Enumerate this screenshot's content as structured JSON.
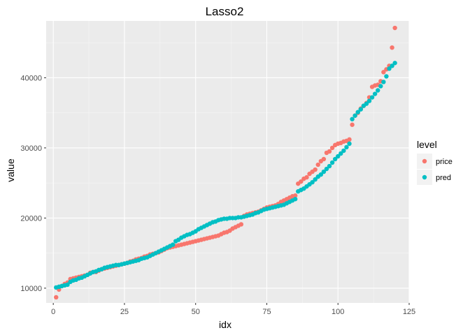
{
  "chart_data": {
    "type": "scatter",
    "title": "Lasso2",
    "xlabel": "idx",
    "ylabel": "value",
    "xlim": [
      -2.5,
      125
    ],
    "ylim": [
      7900,
      48100
    ],
    "x_ticks": [
      0,
      25,
      50,
      75,
      100,
      125
    ],
    "y_ticks": [
      10000,
      20000,
      30000,
      40000
    ],
    "grid": true,
    "legend": {
      "title": "level",
      "position": "right"
    },
    "series": [
      {
        "name": "price",
        "color": "#F8766D",
        "points": [
          [
            1,
            8700
          ],
          [
            2,
            9800
          ],
          [
            3,
            10300
          ],
          [
            4,
            10600
          ],
          [
            5,
            10800
          ],
          [
            6,
            11300
          ],
          [
            7,
            11400
          ],
          [
            8,
            11500
          ],
          [
            9,
            11600
          ],
          [
            10,
            11700
          ],
          [
            11,
            11800
          ],
          [
            12,
            11900
          ],
          [
            13,
            12200
          ],
          [
            14,
            12300
          ],
          [
            15,
            12300
          ],
          [
            16,
            12500
          ],
          [
            17,
            12700
          ],
          [
            18,
            12800
          ],
          [
            19,
            12900
          ],
          [
            20,
            13000
          ],
          [
            21,
            13100
          ],
          [
            22,
            13200
          ],
          [
            23,
            13300
          ],
          [
            24,
            13400
          ],
          [
            25,
            13500
          ],
          [
            26,
            13600
          ],
          [
            27,
            13800
          ],
          [
            28,
            13900
          ],
          [
            29,
            14100
          ],
          [
            30,
            14200
          ],
          [
            31,
            14300
          ],
          [
            32,
            14500
          ],
          [
            33,
            14600
          ],
          [
            34,
            14800
          ],
          [
            35,
            14900
          ],
          [
            36,
            15000
          ],
          [
            37,
            15100
          ],
          [
            38,
            15300
          ],
          [
            39,
            15500
          ],
          [
            40,
            15700
          ],
          [
            41,
            15800
          ],
          [
            42,
            15900
          ],
          [
            43,
            16000
          ],
          [
            44,
            16100
          ],
          [
            45,
            16200
          ],
          [
            46,
            16300
          ],
          [
            47,
            16400
          ],
          [
            48,
            16500
          ],
          [
            49,
            16600
          ],
          [
            50,
            16700
          ],
          [
            51,
            16800
          ],
          [
            52,
            16900
          ],
          [
            53,
            17000
          ],
          [
            54,
            17100
          ],
          [
            55,
            17200
          ],
          [
            56,
            17300
          ],
          [
            57,
            17400
          ],
          [
            58,
            17500
          ],
          [
            59,
            17700
          ],
          [
            60,
            17900
          ],
          [
            61,
            18000
          ],
          [
            62,
            18200
          ],
          [
            63,
            18500
          ],
          [
            64,
            18700
          ],
          [
            65,
            18900
          ],
          [
            66,
            19100
          ],
          [
            67,
            20300
          ],
          [
            68,
            20500
          ],
          [
            69,
            20600
          ],
          [
            70,
            20700
          ],
          [
            71,
            20800
          ],
          [
            72,
            20900
          ],
          [
            73,
            21100
          ],
          [
            74,
            21300
          ],
          [
            75,
            21500
          ],
          [
            76,
            21600
          ],
          [
            77,
            21700
          ],
          [
            78,
            21800
          ],
          [
            79,
            22000
          ],
          [
            80,
            22300
          ],
          [
            81,
            22500
          ],
          [
            82,
            22700
          ],
          [
            83,
            22900
          ],
          [
            84,
            23100
          ],
          [
            85,
            23200
          ],
          [
            86,
            24900
          ],
          [
            87,
            25200
          ],
          [
            88,
            25600
          ],
          [
            89,
            25800
          ],
          [
            90,
            26300
          ],
          [
            91,
            26600
          ],
          [
            92,
            26900
          ],
          [
            93,
            27600
          ],
          [
            94,
            28100
          ],
          [
            95,
            28400
          ],
          [
            96,
            29300
          ],
          [
            97,
            29500
          ],
          [
            98,
            30000
          ],
          [
            99,
            30400
          ],
          [
            100,
            30600
          ],
          [
            101,
            30700
          ],
          [
            102,
            30900
          ],
          [
            103,
            31000
          ],
          [
            104,
            31200
          ],
          [
            105,
            33300
          ],
          [
            106,
            34600
          ],
          [
            107,
            35000
          ],
          [
            108,
            35600
          ],
          [
            109,
            36000
          ],
          [
            110,
            36400
          ],
          [
            111,
            37200
          ],
          [
            112,
            38700
          ],
          [
            113,
            38900
          ],
          [
            114,
            39000
          ],
          [
            115,
            39500
          ],
          [
            116,
            40800
          ],
          [
            117,
            41200
          ],
          [
            118,
            41700
          ],
          [
            119,
            44300
          ],
          [
            120,
            47100
          ]
        ]
      },
      {
        "name": "pred",
        "color": "#00BFC4",
        "points": [
          [
            1,
            10100
          ],
          [
            2,
            10200
          ],
          [
            3,
            10300
          ],
          [
            4,
            10400
          ],
          [
            5,
            10500
          ],
          [
            6,
            10900
          ],
          [
            7,
            11100
          ],
          [
            8,
            11200
          ],
          [
            9,
            11400
          ],
          [
            10,
            11500
          ],
          [
            11,
            11700
          ],
          [
            12,
            11900
          ],
          [
            13,
            12100
          ],
          [
            14,
            12300
          ],
          [
            15,
            12400
          ],
          [
            16,
            12600
          ],
          [
            17,
            12700
          ],
          [
            18,
            12900
          ],
          [
            19,
            13000
          ],
          [
            20,
            13100
          ],
          [
            21,
            13200
          ],
          [
            22,
            13300
          ],
          [
            23,
            13300
          ],
          [
            24,
            13400
          ],
          [
            25,
            13500
          ],
          [
            26,
            13600
          ],
          [
            27,
            13700
          ],
          [
            28,
            13800
          ],
          [
            29,
            13900
          ],
          [
            30,
            14000
          ],
          [
            31,
            14200
          ],
          [
            32,
            14300
          ],
          [
            33,
            14400
          ],
          [
            34,
            14600
          ],
          [
            35,
            14800
          ],
          [
            36,
            15000
          ],
          [
            37,
            15200
          ],
          [
            38,
            15400
          ],
          [
            39,
            15600
          ],
          [
            40,
            15800
          ],
          [
            41,
            16000
          ],
          [
            42,
            16200
          ],
          [
            43,
            16700
          ],
          [
            44,
            16900
          ],
          [
            45,
            17200
          ],
          [
            46,
            17400
          ],
          [
            47,
            17600
          ],
          [
            48,
            17700
          ],
          [
            49,
            17900
          ],
          [
            50,
            18100
          ],
          [
            51,
            18400
          ],
          [
            52,
            18600
          ],
          [
            53,
            18800
          ],
          [
            54,
            19000
          ],
          [
            55,
            19200
          ],
          [
            56,
            19400
          ],
          [
            57,
            19500
          ],
          [
            58,
            19700
          ],
          [
            59,
            19800
          ],
          [
            60,
            19900
          ],
          [
            61,
            19900
          ],
          [
            62,
            20000
          ],
          [
            63,
            20000
          ],
          [
            64,
            20000
          ],
          [
            65,
            20100
          ],
          [
            66,
            20100
          ],
          [
            67,
            20200
          ],
          [
            68,
            20300
          ],
          [
            69,
            20400
          ],
          [
            70,
            20500
          ],
          [
            71,
            20700
          ],
          [
            72,
            20800
          ],
          [
            73,
            21000
          ],
          [
            74,
            21200
          ],
          [
            75,
            21300
          ],
          [
            76,
            21400
          ],
          [
            77,
            21500
          ],
          [
            78,
            21600
          ],
          [
            79,
            21700
          ],
          [
            80,
            21800
          ],
          [
            81,
            21900
          ],
          [
            82,
            22100
          ],
          [
            83,
            22300
          ],
          [
            84,
            22500
          ],
          [
            85,
            22700
          ],
          [
            86,
            23800
          ],
          [
            87,
            24000
          ],
          [
            88,
            24200
          ],
          [
            89,
            24500
          ],
          [
            90,
            24800
          ],
          [
            91,
            25100
          ],
          [
            92,
            25500
          ],
          [
            93,
            25900
          ],
          [
            94,
            26200
          ],
          [
            95,
            26600
          ],
          [
            96,
            27000
          ],
          [
            97,
            27400
          ],
          [
            98,
            27900
          ],
          [
            99,
            28400
          ],
          [
            100,
            28800
          ],
          [
            101,
            29200
          ],
          [
            102,
            29600
          ],
          [
            103,
            30100
          ],
          [
            104,
            30600
          ],
          [
            105,
            34100
          ],
          [
            106,
            34600
          ],
          [
            107,
            35100
          ],
          [
            108,
            35500
          ],
          [
            109,
            36000
          ],
          [
            110,
            36300
          ],
          [
            111,
            36700
          ],
          [
            112,
            37200
          ],
          [
            113,
            37700
          ],
          [
            114,
            38200
          ],
          [
            115,
            38800
          ],
          [
            116,
            39400
          ],
          [
            117,
            40200
          ],
          [
            118,
            41300
          ],
          [
            119,
            41700
          ],
          [
            120,
            42100
          ]
        ]
      }
    ]
  }
}
